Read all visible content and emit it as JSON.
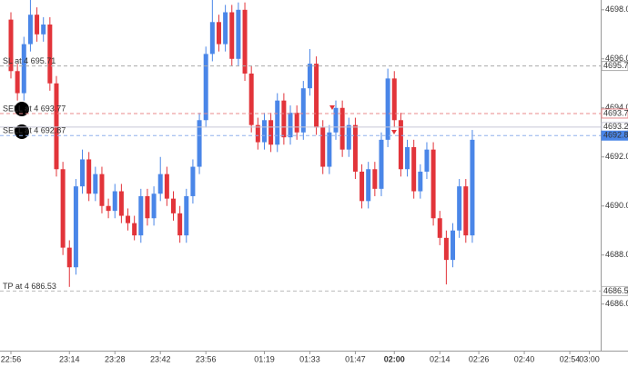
{
  "chart_data": {
    "type": "candlestick",
    "categories": [
      "22:56",
      null,
      null,
      null,
      null,
      null,
      null,
      null,
      null,
      "23:14",
      null,
      null,
      null,
      null,
      null,
      null,
      "23:28",
      null,
      null,
      null,
      null,
      null,
      null,
      "23:42",
      null,
      null,
      null,
      null,
      null,
      null,
      "23:56",
      null,
      null,
      null,
      null,
      null,
      null,
      null,
      null,
      "01:19",
      null,
      null,
      null,
      null,
      null,
      null,
      "01:33",
      null,
      null,
      null,
      null,
      null,
      null,
      "01:47",
      null,
      null,
      null,
      null,
      null,
      "02:00",
      null,
      null,
      null,
      null,
      null,
      null,
      "02:14",
      null,
      null,
      null,
      null,
      null,
      "02:26",
      null,
      null,
      null,
      null,
      null,
      null,
      "02:40",
      null,
      null,
      null,
      null,
      null,
      null,
      "02:54",
      null,
      null,
      "03:00"
    ],
    "up_color": "#4a86e8",
    "down_color": "#e2343a",
    "open": [
      4697.6,
      4695.5,
      4694.6,
      4696.6,
      4697.8,
      4697.0,
      4697.4,
      4695.0,
      4691.5,
      4688.3,
      4687.5,
      4690.8,
      4691.9,
      4690.5,
      4691.3,
      4690.0,
      4689.8,
      4690.6,
      4689.6,
      4689.3,
      4688.8,
      4690.4,
      4689.5,
      4690.5,
      4691.3,
      4690.3,
      4689.7,
      4688.8,
      4690.4,
      4691.6,
      4693.5,
      4696.2,
      4697.5,
      4696.6,
      4697.9,
      4696.0,
      4698.0,
      4695.4,
      4693.3,
      4692.6,
      4693.5,
      4692.5,
      4694.3,
      4692.8,
      4693.8,
      4693.0,
      4694.8,
      4695.8,
      4693.2,
      4691.6,
      4693.0,
      4694.0,
      4692.3,
      4693.3,
      4691.4,
      4690.2,
      4691.5,
      4690.7,
      4692.7,
      4695.2,
      4693.5,
      4691.5,
      4692.4,
      4690.6,
      4691.4,
      4692.3,
      4689.5,
      4688.7,
      4687.8,
      4689.0,
      4690.8,
      4688.8,
      null,
      null,
      null,
      null,
      null,
      null,
      null,
      null,
      null,
      null,
      null,
      null,
      null,
      null,
      null,
      null,
      null,
      null
    ],
    "high": [
      4697.9,
      4695.8,
      4696.9,
      4698.4,
      4698.1,
      4697.7,
      4697.7,
      4695.3,
      4691.8,
      4688.6,
      4691.1,
      4692.3,
      4692.2,
      4691.6,
      4691.6,
      4690.3,
      4690.9,
      4690.9,
      4689.9,
      4689.6,
      4690.7,
      4690.7,
      4690.8,
      4692.0,
      4691.6,
      4690.6,
      4690.0,
      4690.7,
      4691.9,
      4693.8,
      4696.5,
      4698.4,
      4697.8,
      4698.2,
      4698.2,
      4698.3,
      4698.3,
      4695.7,
      4693.6,
      4693.8,
      4693.8,
      4694.6,
      4694.6,
      4694.1,
      4694.1,
      4695.1,
      4696.4,
      4696.1,
      4693.5,
      4693.3,
      4694.3,
      4694.3,
      4693.6,
      4693.6,
      4691.7,
      4691.8,
      4691.8,
      4693.0,
      4695.6,
      4695.5,
      4693.8,
      4692.7,
      4692.7,
      4691.7,
      4692.6,
      4692.6,
      4689.8,
      4689.0,
      4689.3,
      4691.1,
      4691.1,
      4693.1,
      null,
      null,
      null,
      null,
      null,
      null,
      null,
      null,
      null,
      null,
      null,
      null,
      null,
      null,
      null,
      null,
      null,
      null
    ],
    "low": [
      4695.2,
      4694.3,
      4694.3,
      4696.3,
      4696.7,
      4696.7,
      4694.7,
      4691.2,
      4688.0,
      4686.7,
      4687.2,
      4690.5,
      4690.2,
      4690.2,
      4689.7,
      4689.5,
      4689.5,
      4689.3,
      4689.0,
      4688.6,
      4688.5,
      4689.2,
      4689.2,
      4690.2,
      4690.0,
      4689.4,
      4688.5,
      4688.5,
      4690.1,
      4691.3,
      4693.2,
      4695.9,
      4696.3,
      4696.3,
      4695.7,
      4695.7,
      4695.1,
      4693.0,
      4692.3,
      4692.3,
      4692.2,
      4692.2,
      4692.5,
      4692.5,
      4692.7,
      4692.7,
      4694.5,
      4692.9,
      4691.3,
      4691.3,
      4692.7,
      4692.0,
      4692.0,
      4691.1,
      4689.9,
      4689.9,
      4690.4,
      4690.4,
      4692.4,
      4693.2,
      4691.2,
      4691.2,
      4690.3,
      4690.3,
      4691.1,
      4689.2,
      4688.4,
      4686.8,
      4687.5,
      4688.7,
      4688.5,
      4688.5,
      null,
      null,
      null,
      null,
      null,
      null,
      null,
      null,
      null,
      null,
      null,
      null,
      null,
      null,
      null,
      null,
      null,
      null
    ],
    "close": [
      4695.5,
      4694.6,
      4696.6,
      4697.8,
      4697.0,
      4697.4,
      4695.0,
      4691.5,
      4688.3,
      4687.5,
      4690.8,
      4691.9,
      4690.5,
      4691.3,
      4690.0,
      4689.8,
      4690.6,
      4689.6,
      4689.3,
      4688.8,
      4690.4,
      4689.5,
      4690.5,
      4691.3,
      4690.3,
      4689.7,
      4688.8,
      4690.4,
      4691.6,
      4693.5,
      4696.2,
      4697.5,
      4696.6,
      4697.9,
      4696.0,
      4698.0,
      4695.4,
      4693.3,
      4692.6,
      4693.5,
      4692.5,
      4694.3,
      4692.8,
      4693.8,
      4693.0,
      4694.8,
      4695.8,
      4693.2,
      4691.6,
      4693.0,
      4694.0,
      4692.3,
      4693.3,
      4691.4,
      4690.2,
      4691.5,
      4690.7,
      4692.7,
      4695.2,
      4693.5,
      4691.5,
      4692.4,
      4690.6,
      4691.4,
      4692.3,
      4689.5,
      4688.7,
      4687.8,
      4689.0,
      4690.8,
      4688.8,
      4692.7,
      null,
      null,
      null,
      null,
      null,
      null,
      null,
      null,
      null,
      null,
      null,
      null,
      null,
      null,
      null,
      null,
      null,
      null
    ],
    "ylim": [
      4684.1,
      4698.4
    ],
    "yticks": [
      {
        "value": 4686,
        "label": "4686.00"
      },
      {
        "value": 4688,
        "label": "4688.00"
      },
      {
        "value": 4690,
        "label": "4690.00"
      },
      {
        "value": 4692,
        "label": "4692.00"
      },
      {
        "value": 4694,
        "label": "4694.00"
      },
      {
        "value": 4696,
        "label": "4696.00"
      },
      {
        "value": 4698,
        "label": "4698.00"
      }
    ],
    "levels": [
      {
        "label": "SL at 4 695.71",
        "price": 4695.71,
        "color": "#aaaaaa",
        "tag_color": "#ffffff",
        "tag_text": "#555555"
      },
      {
        "label": "SELL at 4 693.77",
        "price": 4693.77,
        "color": "#e8888b",
        "tag_color": "#ffffff",
        "tag_text": "#e2343a"
      },
      {
        "price": 4693.22,
        "color": "#c8c8d8",
        "tag_color": "#ffffff",
        "tag_text": "#333333"
      },
      {
        "label": "SELL at 4 692.87",
        "price": 4692.87,
        "color": "#8fb0ec",
        "tag_color": "#4a86e8",
        "tag_text": "#ffffff"
      },
      {
        "label": "TP at 4 686.53",
        "price": 4686.53,
        "color": "#bbbbbb",
        "tag_color": "#ffffff",
        "tag_text": "#555555"
      }
    ]
  }
}
